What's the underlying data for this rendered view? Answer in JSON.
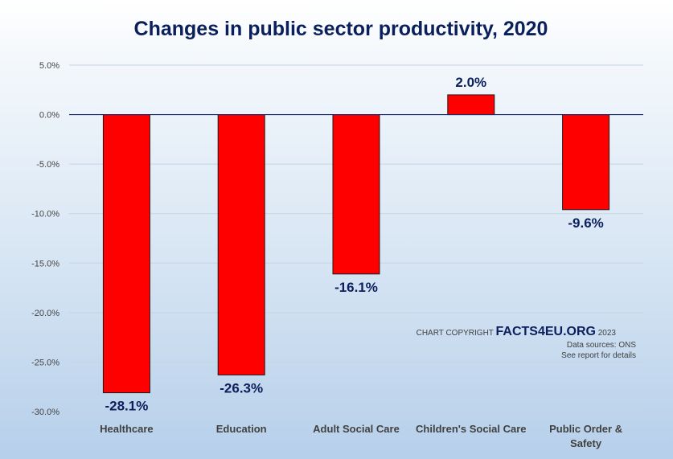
{
  "chart_data": {
    "type": "bar",
    "title": "Changes in public sector productivity, 2020",
    "categories": [
      "Healthcare",
      "Education",
      "Adult Social Care",
      "Children's Social Care",
      "Public Order & Safety"
    ],
    "category_lines": [
      [
        "Healthcare"
      ],
      [
        "Education"
      ],
      [
        "Adult Social Care"
      ],
      [
        "Children's Social Care"
      ],
      [
        "Public Order &",
        "Safety"
      ]
    ],
    "values": [
      -28.1,
      -26.3,
      -16.1,
      2.0,
      -9.6
    ],
    "data_labels": [
      "-28.1%",
      "-26.3%",
      "-16.1%",
      "2.0%",
      "-9.6%"
    ],
    "ylim": [
      -30,
      5
    ],
    "yticks": [
      5,
      0,
      -5,
      -10,
      -15,
      -20,
      -25,
      -30
    ],
    "ytick_labels": [
      "5.0%",
      "0.0%",
      "-5.0%",
      "-10.0%",
      "-15.0%",
      "-20.0%",
      "-25.0%",
      "-30.0%"
    ],
    "grid": true,
    "legend": "none",
    "bar_color": "#ff0000",
    "xlabel": "",
    "ylabel": ""
  },
  "credit": {
    "prefix": "CHART COPYRIGHT ",
    "brand": "FACTS4EU.ORG",
    "year": " 2023",
    "sources": "Data sources: ONS",
    "details": "See report for details"
  }
}
